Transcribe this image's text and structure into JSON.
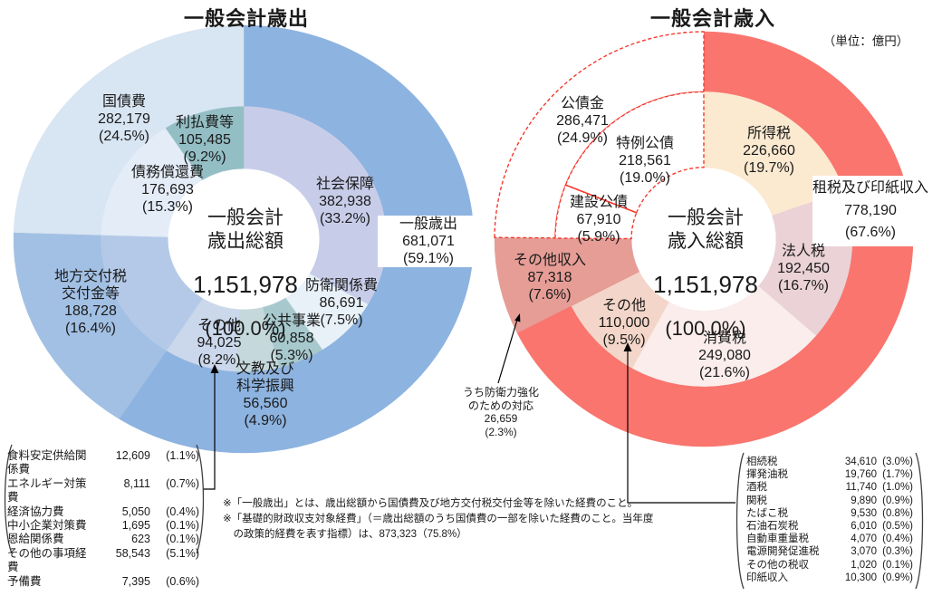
{
  "titles": {
    "expenditure": "一般会計歳出",
    "revenue": "一般会計歳入"
  },
  "unit_note": "（単位：億円）",
  "chart_data": [
    {
      "id": "expenditure",
      "type": "pie",
      "subtype": "double-ring-donut",
      "title": "一般会計歳出",
      "center": {
        "top": "一般会計\n歳出総額",
        "value": "1,151,978",
        "pct": "(100.0%)"
      },
      "total_value": 1151978,
      "legend_position": "in-chart-callouts",
      "outer_ring": [
        {
          "key": "ippan-saishutsu",
          "label": "一般歳出",
          "value": 681071,
          "pct": 59.1,
          "color": "#8DB3E0"
        },
        {
          "key": "chihou-kofuzei",
          "label": "地方交付税交付金等",
          "value": 188728,
          "pct": 16.4,
          "color": "#A2C0E4"
        },
        {
          "key": "kokusaihi",
          "label": "国債費",
          "value": 282179,
          "pct": 24.5,
          "color": "#D8E5F2"
        }
      ],
      "inner_ring": [
        {
          "key": "shakai-hoshou",
          "label": "社会保障",
          "value": 382938,
          "pct": 33.2,
          "color": "#C7CDE9"
        },
        {
          "key": "bouei-kankeihi",
          "label": "防衛関係費",
          "value": 86691,
          "pct": 7.5,
          "color": "#E8F1F8"
        },
        {
          "key": "koukyou-jigyou",
          "label": "公共事業",
          "value": 60858,
          "pct": 5.3,
          "color": "#A7C9CD"
        },
        {
          "key": "bunkyou-kagaku",
          "label": "文教及び科学振興",
          "value": 56560,
          "pct": 4.9,
          "color": "#C5D8DB"
        },
        {
          "key": "sonota",
          "label": "その他",
          "value": 94025,
          "pct": 8.2,
          "color": "#CBD7EB"
        },
        {
          "key": "chihou-kofuzei-inner",
          "label": "地方交付税交付金等",
          "value": 188728,
          "pct": 16.4,
          "color": "#B4C9E8"
        },
        {
          "key": "saimu-shoukan",
          "label": "債務償還費",
          "value": 176693,
          "pct": 15.3,
          "color": "#E3ECF7"
        },
        {
          "key": "riharai-hitou",
          "label": "利払費等",
          "value": 105485,
          "pct": 9.2,
          "color": "#93BEC4"
        }
      ],
      "callouts": {
        "kokusaihi": "国債費\n282,179\n(24.5%)",
        "riharai": "利払費等\n105,485\n(9.2%)",
        "saimu": "債務償還費\n176,693\n(15.3%)",
        "shakai": "社会保障\n382,938\n(33.2%)",
        "ippan": "一般歳出\n681,071\n(59.1%)",
        "boei": "防衛関係費\n86,691\n(7.5%)",
        "kokyo": "公共事業\n60,858\n(5.3%)",
        "bunkyo": "文教及び\n科学振興\n56,560\n(4.9%)",
        "sonota": "その他\n94,025\n(8.2%)",
        "chihou": "地方交付税\n交付金等\n188,728\n(16.4%)"
      }
    },
    {
      "id": "revenue",
      "type": "pie",
      "subtype": "double-ring-donut",
      "title": "一般会計歳入",
      "center": {
        "top": "一般会計\n歳入総額",
        "value": "1,151,978",
        "pct": "(100.0%)"
      },
      "total_value": 1151978,
      "legend_position": "in-chart-callouts",
      "solid_divider_after_inner_index": 5,
      "outer_ring": [
        {
          "key": "sozei-inshi",
          "label": "租税及び印紙収入",
          "value": 778190,
          "pct": 67.6,
          "color": "#F9756E"
        },
        {
          "key": "sonota-shunyu",
          "label": "その他収入",
          "value": 87318,
          "pct": 7.6,
          "color": "#E59D96"
        },
        {
          "key": "kosaikin",
          "label": "公債金",
          "value": 286471,
          "pct": 24.9,
          "color": "#FFFFFF",
          "dashed": true
        }
      ],
      "inner_ring": [
        {
          "key": "shotokuzei",
          "label": "所得税",
          "value": 226660,
          "pct": 19.7,
          "color": "#FBE9D0"
        },
        {
          "key": "hojinzei",
          "label": "法人税",
          "value": 192450,
          "pct": 16.7,
          "color": "#EAD2D7"
        },
        {
          "key": "shohizei",
          "label": "消費税",
          "value": 249080,
          "pct": 21.6,
          "color": "#FAEDEC"
        },
        {
          "key": "sonota-zei",
          "label": "その他",
          "value": 110000,
          "pct": 9.5,
          "color": "#F3D6C9"
        },
        {
          "key": "sonota-shunyu-inner",
          "label": "その他収入",
          "value": 87318,
          "pct": 7.6,
          "color": "#E59D96"
        },
        {
          "key": "kensetsu-kosai",
          "label": "建設公債",
          "value": 67910,
          "pct": 5.9,
          "color": "#FFFFFF",
          "dashed": true
        },
        {
          "key": "tokurei-kosai",
          "label": "特例公債",
          "value": 218561,
          "pct": 19.0,
          "color": "#FFFFFF",
          "dashed": true
        }
      ],
      "callouts": {
        "kosaikin": "公債金\n286,471\n(24.9%)",
        "tokurei": "特例公債\n218,561\n(19.0%)",
        "kensetsu": "建設公債\n67,910\n(5.9%)",
        "shotoku": "所得税\n226,660\n(19.7%)",
        "sozei": "租税及び印紙収入\n778,190\n(67.6%)",
        "hojin": "法人税\n192,450\n(16.7%)",
        "shohi": "消費税\n249,080\n(21.6%)",
        "sonota_zei": "その他\n110,000\n(9.5%)",
        "sonota_shunyu": "その他収入\n87,318\n(7.6%)",
        "boeiryoku": "うち防衛力強化\nのための対応\n26,659\n(2.3%)"
      }
    }
  ],
  "tables": {
    "expenditure": {
      "rows": [
        {
          "label": "食料安定供給関係費",
          "value": "12,609",
          "pct": "(1.1%)"
        },
        {
          "label": "エネルギー対策費",
          "value": "8,111",
          "pct": "(0.7%)"
        },
        {
          "label": "経済協力費",
          "value": "5,050",
          "pct": "(0.4%)"
        },
        {
          "label": "中小企業対策費",
          "value": "1,695",
          "pct": "(0.1%)"
        },
        {
          "label": "恩給関係費",
          "value": "623",
          "pct": "(0.1%)"
        },
        {
          "label": "その他の事項経費",
          "value": "58,543",
          "pct": "(5.1%)"
        },
        {
          "label": "予備費",
          "value": "7,395",
          "pct": "(0.6%)"
        }
      ]
    },
    "revenue": {
      "rows": [
        {
          "label": "相続税",
          "value": "34,610",
          "pct": "(3.0%)"
        },
        {
          "label": "揮発油税",
          "value": "19,760",
          "pct": "(1.7%)"
        },
        {
          "label": "酒税",
          "value": "11,740",
          "pct": "(1.0%)"
        },
        {
          "label": "関税",
          "value": "9,890",
          "pct": "(0.9%)"
        },
        {
          "label": "たばこ税",
          "value": "9,530",
          "pct": "(0.8%)"
        },
        {
          "label": "石油石炭税",
          "value": "6,010",
          "pct": "(0.5%)"
        },
        {
          "label": "自動車重量税",
          "value": "4,070",
          "pct": "(0.4%)"
        },
        {
          "label": "電源開発促進税",
          "value": "3,070",
          "pct": "(0.3%)"
        },
        {
          "label": "その他の税収",
          "value": "1,020",
          "pct": "(0.1%)"
        },
        {
          "label": "印紙収入",
          "value": "10,300",
          "pct": "(0.9%)"
        }
      ]
    }
  },
  "footnote": "※「一般歳出」とは、歳出総額から国債費及び地方交付税交付金等を除いた経費のこと。\n※「基礎的財政収支対象経費」（＝歳出総額のうち国債費の一部を除いた経費のこと。当年度\n　の政策的経費を表す指標）は、873,323（75.8%）"
}
